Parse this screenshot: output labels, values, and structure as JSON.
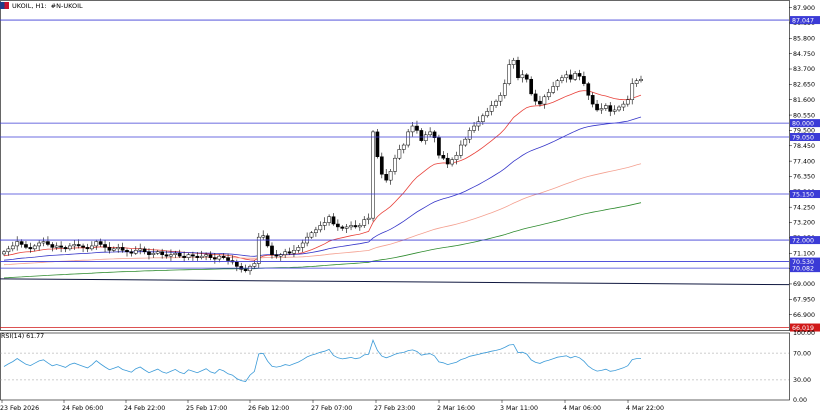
{
  "header": {
    "symbol": "UKOIL, H1:",
    "description": "#N-UKOIL"
  },
  "indicator": {
    "label": "RSI(14) 61.77"
  },
  "colors": {
    "candle_stroke": "#000000",
    "ma_fast": "#e8413a",
    "ma_mid": "#3535c8",
    "ma_slow": "#f4a090",
    "ma_long": "#2e8b2e",
    "ma_longest": "#101840",
    "hline": "#3b3bd6",
    "hline_red": "#d01818",
    "rsi": "#3c9bd8",
    "label_blue_bg": "#3b3bd6",
    "label_red_bg": "#d01818"
  },
  "chart_data": {
    "type": "candlestick",
    "symbol": "UKOIL",
    "timeframe": "H1",
    "y_ticks": [
      "87.900",
      "86.850",
      "85.800",
      "84.750",
      "83.700",
      "82.650",
      "81.600",
      "80.550",
      "79.500",
      "78.450",
      "77.400",
      "76.350",
      "75.300",
      "74.250",
      "73.200",
      "72.150",
      "71.100",
      "70.050",
      "69.000",
      "67.950",
      "66.900",
      "65.850"
    ],
    "ylim": [
      65.85,
      88.42
    ],
    "x_ticks": [
      "23 Feb 2026",
      "24 Feb 06:00",
      "24 Feb 22:00",
      "25 Feb 17:00",
      "26 Feb 12:00",
      "27 Feb 07:00",
      "27 Feb 23:00",
      "2 Mar 16:00",
      "3 Mar 11:00",
      "4 Mar 06:00",
      "4 Mar 22:00"
    ],
    "horizontal_levels": [
      {
        "label": "87.047",
        "value": 87.047,
        "color": "#3b3bd6"
      },
      {
        "label": "80.000",
        "value": 80.0,
        "color": "#3b3bd6"
      },
      {
        "label": "79.050",
        "value": 79.05,
        "color": "#3b3bd6"
      },
      {
        "label": "75.150",
        "value": 75.15,
        "color": "#3b3bd6"
      },
      {
        "label": "72.000",
        "value": 72.0,
        "color": "#3b3bd6"
      },
      {
        "label": "70.530",
        "value": 70.53,
        "color": "#3b3bd6"
      },
      {
        "label": "70.082",
        "value": 70.082,
        "color": "#3b3bd6"
      },
      {
        "label": "66.019",
        "value": 66.019,
        "color": "#d01818"
      }
    ],
    "closes": [
      71.2,
      71.4,
      71.6,
      71.9,
      71.7,
      71.5,
      71.4,
      71.6,
      71.8,
      71.9,
      71.7,
      71.5,
      71.6,
      71.5,
      71.4,
      71.6,
      71.7,
      71.6,
      71.5,
      71.4,
      71.6,
      71.9,
      71.7,
      71.5,
      71.3,
      71.4,
      71.5,
      71.3,
      71.2,
      71.1,
      71.3,
      71.4,
      71.2,
      71.0,
      71.1,
      71.2,
      71.0,
      70.9,
      71.0,
      71.1,
      70.9,
      70.8,
      71.0,
      70.9,
      70.8,
      70.9,
      71.0,
      70.8,
      70.7,
      70.9,
      70.8,
      70.6,
      70.5,
      70.2,
      70.0,
      69.9,
      70.2,
      70.4,
      72.2,
      72.3,
      71.6,
      71.0,
      70.9,
      71.0,
      71.2,
      71.1,
      71.3,
      71.5,
      71.8,
      72.2,
      72.5,
      72.7,
      73.0,
      73.2,
      73.6,
      73.1,
      72.9,
      72.8,
      72.9,
      73.0,
      72.9,
      73.0,
      73.4,
      73.5,
      79.4,
      77.7,
      76.5,
      76.1,
      76.7,
      77.6,
      78.2,
      78.5,
      79.4,
      79.8,
      79.5,
      78.8,
      79.2,
      79.4,
      79.0,
      77.8,
      77.6,
      77.2,
      77.5,
      77.8,
      78.5,
      78.9,
      79.5,
      79.8,
      80.1,
      80.5,
      80.8,
      81.2,
      81.5,
      81.9,
      82.7,
      84.0,
      84.3,
      83.1,
      83.3,
      83.0,
      82.0,
      81.5,
      81.3,
      81.8,
      82.1,
      82.5,
      82.9,
      83.1,
      83.3,
      83.0,
      83.4,
      83.2,
      82.7,
      81.9,
      81.3,
      80.9,
      81.0,
      81.2,
      80.8,
      80.9,
      81.1,
      81.3,
      81.6,
      82.7,
      82.9,
      83.0
    ],
    "ma_fast_start": 70.9,
    "ma_mid_start": 70.6,
    "ma_slow_start": 70.3,
    "ma_long_start": 69.4,
    "ma_longest": [
      69.35,
      68.95
    ],
    "rsi": {
      "label": "RSI(14) 61.77",
      "value": 61.77,
      "levels": [
        70,
        30
      ],
      "y_ticks": [
        "100.00",
        "70.00",
        "30.00",
        "0.00"
      ],
      "ylim": [
        0,
        100
      ]
    }
  }
}
